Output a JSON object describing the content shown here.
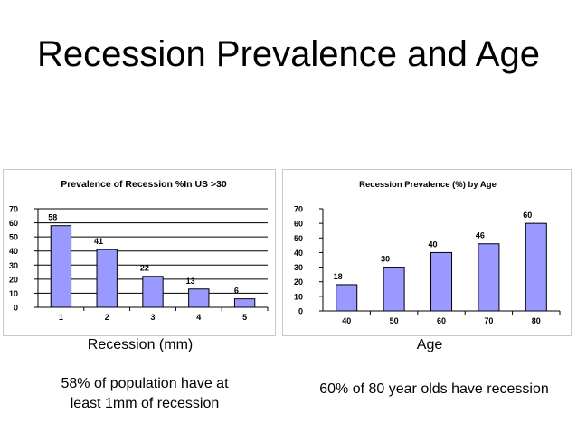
{
  "slide": {
    "title": "Recession Prevalence and Age",
    "left_caption": "Recession (mm)",
    "right_caption": "Age",
    "left_note_line1": "58% of population have at",
    "left_note_line2": "least 1mm of recession",
    "right_note": "60% of 80 year olds have recession"
  },
  "colors": {
    "bar_fill": "#9999ff",
    "bar_stroke": "#000000",
    "grid": "#000000",
    "axis": "#808080"
  },
  "chart_data": [
    {
      "type": "bar",
      "title": "Prevalence of Recession %In US >30",
      "categories": [
        "1",
        "2",
        "3",
        "4",
        "5"
      ],
      "values": [
        58,
        41,
        22,
        13,
        6
      ],
      "ylim": [
        0,
        70
      ],
      "yticks": [
        0,
        10,
        20,
        30,
        40,
        50,
        60,
        70
      ],
      "xlabel": "Recession (mm)",
      "ylabel": "",
      "grid": true
    },
    {
      "type": "bar",
      "title": "Recession Prevalence (%) by Age",
      "categories": [
        "40",
        "50",
        "60",
        "70",
        "80"
      ],
      "values": [
        18,
        30,
        40,
        46,
        60
      ],
      "ylim": [
        0,
        70
      ],
      "yticks": [
        0,
        10,
        20,
        30,
        40,
        50,
        60,
        70
      ],
      "xlabel": "Age",
      "ylabel": "",
      "grid": false
    }
  ]
}
